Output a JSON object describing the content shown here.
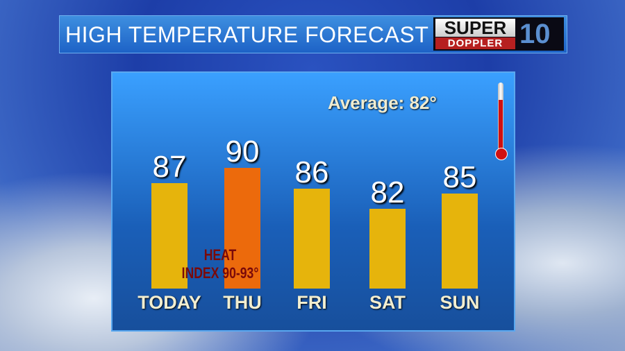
{
  "header": {
    "title": "HIGH TEMPERATURE FORECAST",
    "logo": {
      "line1": "SUPER",
      "line2": "DOPPLER",
      "number": "10"
    }
  },
  "average_label": "Average: 82°",
  "annotation": {
    "line1": "HEAT",
    "line2": "INDEX 90-93°"
  },
  "colors": {
    "normal": "#e6b40c",
    "hot": "#ec6a0c",
    "panel": "#2a7ee0"
  },
  "chart_data": {
    "type": "bar",
    "categories": [
      "TODAY",
      "THU",
      "FRI",
      "SAT",
      "SUN"
    ],
    "values": [
      87,
      90,
      86,
      82,
      85
    ],
    "labels": [
      "87",
      "90",
      "86",
      "82",
      "85"
    ],
    "highlight": [
      "normal",
      "hot",
      "normal",
      "normal",
      "normal"
    ],
    "title": "HIGH TEMPERATURE FORECAST"
  }
}
